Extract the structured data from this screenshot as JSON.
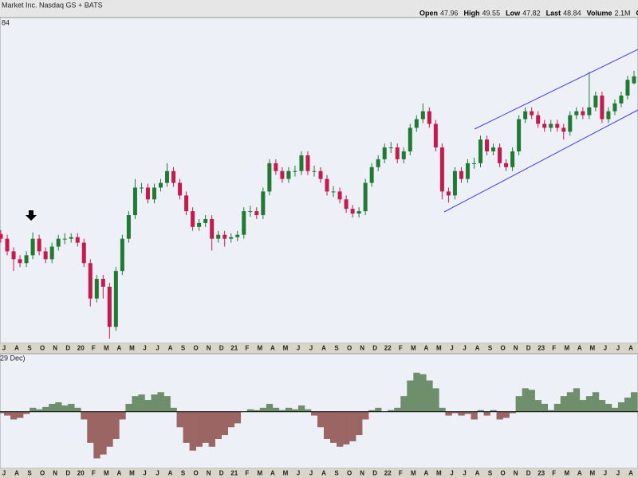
{
  "header": {
    "title": "Market Inc. Nasdaq GS + BATS",
    "stats": [
      {
        "label": "Open",
        "value": "47.96"
      },
      {
        "label": "High",
        "value": "49.55"
      },
      {
        "label": "Low",
        "value": "47.82"
      },
      {
        "label": "Last",
        "value": "48.84"
      },
      {
        "label": "Volume",
        "value": "2.1M"
      }
    ],
    "cut": "Chg"
  },
  "price_label_fragment": "84",
  "indicator_label": "29 Dec)",
  "chart_data": {
    "type": "candlestick",
    "ylim": [
      15,
      55
    ],
    "up_color": "#1f7a32",
    "down_color": "#c8184c",
    "x_labels": [
      "J",
      "A",
      "S",
      "O",
      "N",
      "D",
      "20",
      "F",
      "M",
      "A",
      "M",
      "J",
      "J",
      "A",
      "S",
      "O",
      "N",
      "D",
      "21",
      "F",
      "M",
      "A",
      "M",
      "J",
      "J",
      "A",
      "S",
      "O",
      "N",
      "D",
      "22",
      "F",
      "M",
      "A",
      "M",
      "J",
      "J",
      "A",
      "S",
      "O",
      "N",
      "D",
      "23",
      "F",
      "M",
      "A",
      "M",
      "J",
      "J",
      "A"
    ],
    "open": [
      28.8,
      28.2,
      26.6,
      25.6,
      25.1,
      26.1,
      28.2,
      26.6,
      25.6,
      27.2,
      28.2,
      28.2,
      28.4,
      27.7,
      25.1,
      20.6,
      23.1,
      22.1,
      17.0,
      24.1,
      28.2,
      31.2,
      34.7,
      34.7,
      33.2,
      34.7,
      35.3,
      36.8,
      35.3,
      33.7,
      31.7,
      29.7,
      30.2,
      30.7,
      28.2,
      28.7,
      28.2,
      28.4,
      28.7,
      31.7,
      31.7,
      31.2,
      34.2,
      37.8,
      36.8,
      35.8,
      36.8,
      36.8,
      38.8,
      36.8,
      36.8,
      35.8,
      34.2,
      34.2,
      33.2,
      32.0,
      31.4,
      31.7,
      35.3,
      37.3,
      38.3,
      39.8,
      39.8,
      38.3,
      39.3,
      42.3,
      43.4,
      44.4,
      42.8,
      39.8,
      34.2,
      33.7,
      36.8,
      35.8,
      37.8,
      37.8,
      40.8,
      39.3,
      39.8,
      37.8,
      37.3,
      39.3,
      43.4,
      44.4,
      43.9,
      42.8,
      42.3,
      42.8,
      42.3,
      41.8,
      43.9,
      44.4,
      43.9,
      44.9,
      46.4,
      43.4,
      44.4,
      45.4,
      46.4,
      47.96
    ],
    "high": [
      29.3,
      28.7,
      27.1,
      26.1,
      26.6,
      29.0,
      28.7,
      27.1,
      27.7,
      28.7,
      28.9,
      28.9,
      28.9,
      28.2,
      25.6,
      23.6,
      23.6,
      22.6,
      24.6,
      28.7,
      31.7,
      35.8,
      35.3,
      35.2,
      35.2,
      35.8,
      37.8,
      37.3,
      35.8,
      34.2,
      32.2,
      30.7,
      31.2,
      31.2,
      29.2,
      29.2,
      28.9,
      29.2,
      32.2,
      32.4,
      32.2,
      34.7,
      38.3,
      38.3,
      37.3,
      37.3,
      37.5,
      39.3,
      39.3,
      37.5,
      37.3,
      36.3,
      34.9,
      34.7,
      33.7,
      32.5,
      32.2,
      35.8,
      37.8,
      38.8,
      40.3,
      40.5,
      40.3,
      39.8,
      42.8,
      43.9,
      45.4,
      44.9,
      43.3,
      40.3,
      34.7,
      37.3,
      37.3,
      38.3,
      38.5,
      41.3,
      41.3,
      40.3,
      40.3,
      38.3,
      39.8,
      43.9,
      44.9,
      44.9,
      44.4,
      43.3,
      43.3,
      43.3,
      42.8,
      44.4,
      44.9,
      44.9,
      49.4,
      46.9,
      46.9,
      44.9,
      45.9,
      46.9,
      48.9,
      49.55
    ],
    "low": [
      27.7,
      26.1,
      24.1,
      24.6,
      24.6,
      25.6,
      26.1,
      25.1,
      25.1,
      26.7,
      27.5,
      27.7,
      27.2,
      24.6,
      19.6,
      20.1,
      20.6,
      15.5,
      16.5,
      23.6,
      27.7,
      30.7,
      34.0,
      32.7,
      32.7,
      34.2,
      34.8,
      34.8,
      33.2,
      31.2,
      29.2,
      29.2,
      29.7,
      26.7,
      27.7,
      27.2,
      27.7,
      27.9,
      28.2,
      31.0,
      30.7,
      30.7,
      33.7,
      36.3,
      35.3,
      35.3,
      36.1,
      36.3,
      36.3,
      36.1,
      35.3,
      33.7,
      33.5,
      32.7,
      31.5,
      30.9,
      30.9,
      31.2,
      34.8,
      36.8,
      37.8,
      39.1,
      37.8,
      37.8,
      38.8,
      41.8,
      42.9,
      42.3,
      39.3,
      33.2,
      32.8,
      33.2,
      35.3,
      35.3,
      37.1,
      37.3,
      38.8,
      38.8,
      37.3,
      36.8,
      36.8,
      38.8,
      42.9,
      43.4,
      42.3,
      41.8,
      41.8,
      41.8,
      40.8,
      41.3,
      43.4,
      43.4,
      43.4,
      44.4,
      42.9,
      42.9,
      43.9,
      44.9,
      45.9,
      47.82
    ],
    "close": [
      28.2,
      26.6,
      25.6,
      25.1,
      26.1,
      28.2,
      26.6,
      25.6,
      27.2,
      28.2,
      28.2,
      28.4,
      27.7,
      25.1,
      20.6,
      23.1,
      22.1,
      17.0,
      24.1,
      28.2,
      31.2,
      34.7,
      34.7,
      33.2,
      34.7,
      35.3,
      36.8,
      35.3,
      33.7,
      31.7,
      29.7,
      30.2,
      30.7,
      28.2,
      28.7,
      28.2,
      28.4,
      28.7,
      31.7,
      31.7,
      31.2,
      34.2,
      37.8,
      36.8,
      35.8,
      36.8,
      36.8,
      38.8,
      36.8,
      36.8,
      35.8,
      34.2,
      34.2,
      33.2,
      32.0,
      31.4,
      31.7,
      35.3,
      37.3,
      38.3,
      39.8,
      39.8,
      38.3,
      39.3,
      42.3,
      43.4,
      44.4,
      42.8,
      39.8,
      34.2,
      33.7,
      36.8,
      35.8,
      37.8,
      37.8,
      40.8,
      39.3,
      39.8,
      37.8,
      37.3,
      39.3,
      43.4,
      44.4,
      43.9,
      42.8,
      42.3,
      42.8,
      42.3,
      41.8,
      43.9,
      44.4,
      43.9,
      44.9,
      46.4,
      43.4,
      44.4,
      45.4,
      46.4,
      48.4,
      48.84
    ],
    "indicator": {
      "type": "area",
      "ylim": [
        -0.8,
        0.6
      ],
      "pos_color": "#6f8f6c",
      "neg_color": "#9a6563",
      "values": [
        -0.02,
        -0.05,
        -0.1,
        -0.08,
        -0.03,
        0.05,
        0.03,
        0.06,
        0.1,
        0.12,
        0.08,
        0.1,
        0.05,
        -0.1,
        -0.4,
        -0.6,
        -0.55,
        -0.45,
        -0.35,
        -0.1,
        0.1,
        0.2,
        0.22,
        0.15,
        0.22,
        0.25,
        0.2,
        0.05,
        -0.2,
        -0.4,
        -0.5,
        -0.45,
        -0.4,
        -0.45,
        -0.35,
        -0.3,
        -0.2,
        -0.15,
        0,
        0.03,
        0.02,
        0.05,
        0.1,
        0.05,
        0.02,
        0.05,
        0.03,
        0.08,
        0.03,
        -0.05,
        -0.2,
        -0.35,
        -0.4,
        -0.45,
        -0.42,
        -0.38,
        -0.3,
        -0.1,
        0.02,
        0.05,
        0,
        0.02,
        0.05,
        0.2,
        0.4,
        0.5,
        0.48,
        0.4,
        0.3,
        0.05,
        -0.05,
        -0.02,
        -0.05,
        -0.03,
        -0.1,
        0.02,
        -0.05,
        0.02,
        -0.1,
        -0.08,
        -0.02,
        0.2,
        0.3,
        0.28,
        0.15,
        0.1,
        0.02,
        0.1,
        0.2,
        0.25,
        0.3,
        0.15,
        0.2,
        0.25,
        0.15,
        0.1,
        0.05,
        0.12,
        0.18,
        0.25
      ]
    }
  }
}
